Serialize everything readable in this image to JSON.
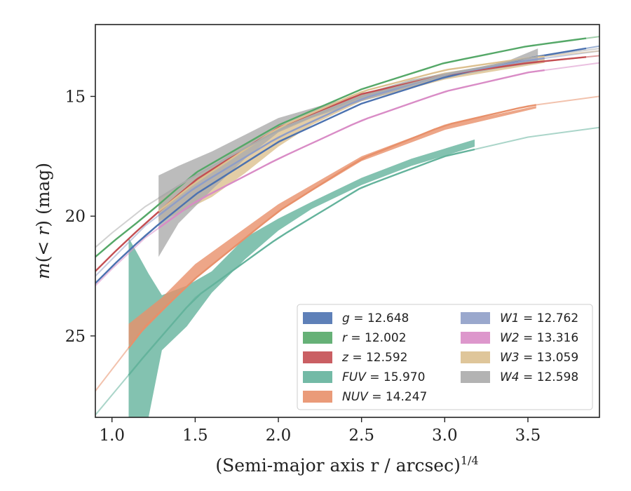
{
  "chart_data": {
    "type": "line",
    "title": "",
    "xlabel_main": "(Semi-major axis r / arcsec)",
    "xlabel_sup": "1/4",
    "ylabel_parts": [
      "m",
      "(< ",
      "r",
      ") (mag)"
    ],
    "xlim": [
      0.9,
      3.93
    ],
    "ylim": [
      28.4,
      12.0
    ],
    "y_inverted": true,
    "xticks": [
      "1.0",
      "1.5",
      "2.0",
      "2.5",
      "3.0",
      "3.5"
    ],
    "xtick_values": [
      1.0,
      1.5,
      2.0,
      2.5,
      3.0,
      3.5
    ],
    "yticks": [
      "15",
      "20",
      "25"
    ],
    "ytick_values": [
      15,
      20,
      25
    ],
    "grid": false,
    "legend_position": "lower-right",
    "legend_columns": 2,
    "series": [
      {
        "name": "g",
        "value": "12.648",
        "color": "#4c72b0",
        "model_x": [
          0.9,
          1.0,
          1.2,
          1.5,
          2.0,
          2.5,
          3.0,
          3.5,
          3.93
        ],
        "model_y": [
          22.8,
          22.1,
          20.8,
          19.1,
          16.9,
          15.3,
          14.2,
          13.4,
          12.9
        ],
        "obs_x": [
          0.9,
          3.85
        ],
        "band_lo": [],
        "band_hi": []
      },
      {
        "name": "r",
        "value": "12.002",
        "color": "#55a868",
        "model_x": [
          0.9,
          1.0,
          1.2,
          1.5,
          2.0,
          2.5,
          3.0,
          3.5,
          3.93
        ],
        "model_y": [
          21.7,
          21.1,
          20.0,
          18.2,
          16.2,
          14.7,
          13.6,
          12.9,
          12.5
        ],
        "obs_x": [
          0.9,
          3.85
        ],
        "band_lo": [],
        "band_hi": []
      },
      {
        "name": "z",
        "value": "12.592",
        "color": "#c44e52",
        "model_x": [
          0.9,
          1.0,
          1.2,
          1.5,
          2.0,
          2.5,
          3.0,
          3.5,
          3.93
        ],
        "model_y": [
          22.3,
          21.6,
          20.3,
          18.5,
          16.3,
          14.9,
          14.1,
          13.6,
          13.3
        ],
        "obs_x": [
          0.9,
          3.85
        ],
        "band_lo": [],
        "band_hi": []
      },
      {
        "name": "FUV",
        "value": "15.970",
        "color": "#64b39c",
        "model_x": [
          0.9,
          1.2,
          1.5,
          2.0,
          2.5,
          3.0,
          3.5,
          3.93
        ],
        "model_y": [
          28.3,
          25.8,
          23.4,
          20.9,
          18.8,
          17.5,
          16.7,
          16.3
        ],
        "obs_x": [
          1.1,
          3.18
        ],
        "band_x": [
          1.1,
          1.22,
          1.3,
          1.45,
          1.6,
          1.8,
          2.0,
          2.2,
          2.5,
          2.8,
          3.18
        ],
        "band_lo": [
          20.9,
          22.4,
          23.3,
          22.9,
          22.3,
          20.9,
          20.1,
          19.4,
          18.4,
          17.6,
          16.8
        ],
        "band_hi": [
          28.4,
          28.4,
          25.6,
          24.6,
          23.2,
          21.8,
          20.6,
          19.7,
          18.7,
          17.9,
          17.1
        ]
      },
      {
        "name": "NUV",
        "value": "14.247",
        "color": "#e8906a",
        "model_x": [
          0.9,
          1.2,
          1.5,
          2.0,
          2.5,
          3.0,
          3.5,
          3.93
        ],
        "model_y": [
          27.3,
          24.6,
          22.6,
          19.8,
          17.6,
          16.2,
          15.4,
          15.0
        ],
        "obs_x": [
          1.1,
          3.55
        ],
        "band_x": [
          1.1,
          1.3,
          1.5,
          2.0,
          2.5,
          3.0,
          3.55
        ],
        "band_lo": [
          24.5,
          23.4,
          22.0,
          19.5,
          17.5,
          16.2,
          15.4
        ],
        "band_hi": [
          25.4,
          24.0,
          22.6,
          19.8,
          17.7,
          16.4,
          15.5
        ]
      },
      {
        "name": "W1",
        "value": "12.762",
        "color": "#8f9ec8",
        "model_x": [
          0.9,
          1.0,
          1.2,
          1.5,
          2.0,
          2.5,
          3.0,
          3.5,
          3.93
        ],
        "model_y": [
          22.5,
          21.8,
          20.4,
          18.8,
          16.7,
          15.1,
          14.1,
          13.5,
          13.1
        ],
        "obs_x": [
          1.28,
          3.6
        ],
        "band_lo": [],
        "band_hi": []
      },
      {
        "name": "W2",
        "value": "13.316",
        "color": "#d98cc6",
        "model_x": [
          0.9,
          1.0,
          1.2,
          1.5,
          2.0,
          2.5,
          3.0,
          3.5,
          3.93
        ],
        "model_y": [
          22.9,
          22.2,
          20.9,
          19.4,
          17.6,
          16.0,
          14.8,
          14.0,
          13.6
        ],
        "obs_x": [
          1.28,
          3.6
        ],
        "band_lo": [],
        "band_hi": []
      },
      {
        "name": "W3",
        "value": "13.059",
        "color": "#dcc08f",
        "model_x": [
          1.28,
          1.5,
          2.0,
          2.5,
          3.0,
          3.5,
          3.93
        ],
        "model_y": [
          19.8,
          18.6,
          16.3,
          14.8,
          13.9,
          13.4,
          13.1
        ],
        "obs_x": [
          1.28,
          3.6
        ],
        "band_x": [
          1.28,
          1.4,
          1.6,
          1.8,
          2.0,
          2.2,
          2.5,
          3.0,
          3.6
        ],
        "band_lo": [
          19.2,
          18.8,
          17.9,
          17.0,
          16.3,
          15.7,
          14.9,
          14.0,
          13.4
        ],
        "band_hi": [
          20.2,
          19.9,
          19.2,
          18.2,
          17.1,
          16.2,
          15.2,
          14.3,
          13.6
        ]
      },
      {
        "name": "W4",
        "value": "12.598",
        "color": "#ababab",
        "model_x": [
          0.9,
          1.0,
          1.2,
          1.5,
          2.0,
          2.5,
          3.0,
          3.5,
          3.93
        ],
        "model_y": [
          21.3,
          20.7,
          19.6,
          18.3,
          16.4,
          15.0,
          14.1,
          13.4,
          13.0
        ],
        "obs_x": [
          1.28,
          3.56
        ],
        "band_x": [
          1.28,
          1.4,
          1.6,
          1.8,
          2.0,
          2.2,
          2.5,
          2.8,
          3.1,
          3.35,
          3.56
        ],
        "band_lo": [
          18.3,
          17.9,
          17.3,
          16.6,
          15.9,
          15.5,
          14.9,
          14.3,
          13.9,
          13.6,
          13.0
        ],
        "band_hi": [
          21.7,
          20.3,
          18.9,
          17.6,
          16.5,
          15.9,
          15.2,
          14.6,
          14.1,
          13.8,
          13.6
        ]
      }
    ]
  }
}
